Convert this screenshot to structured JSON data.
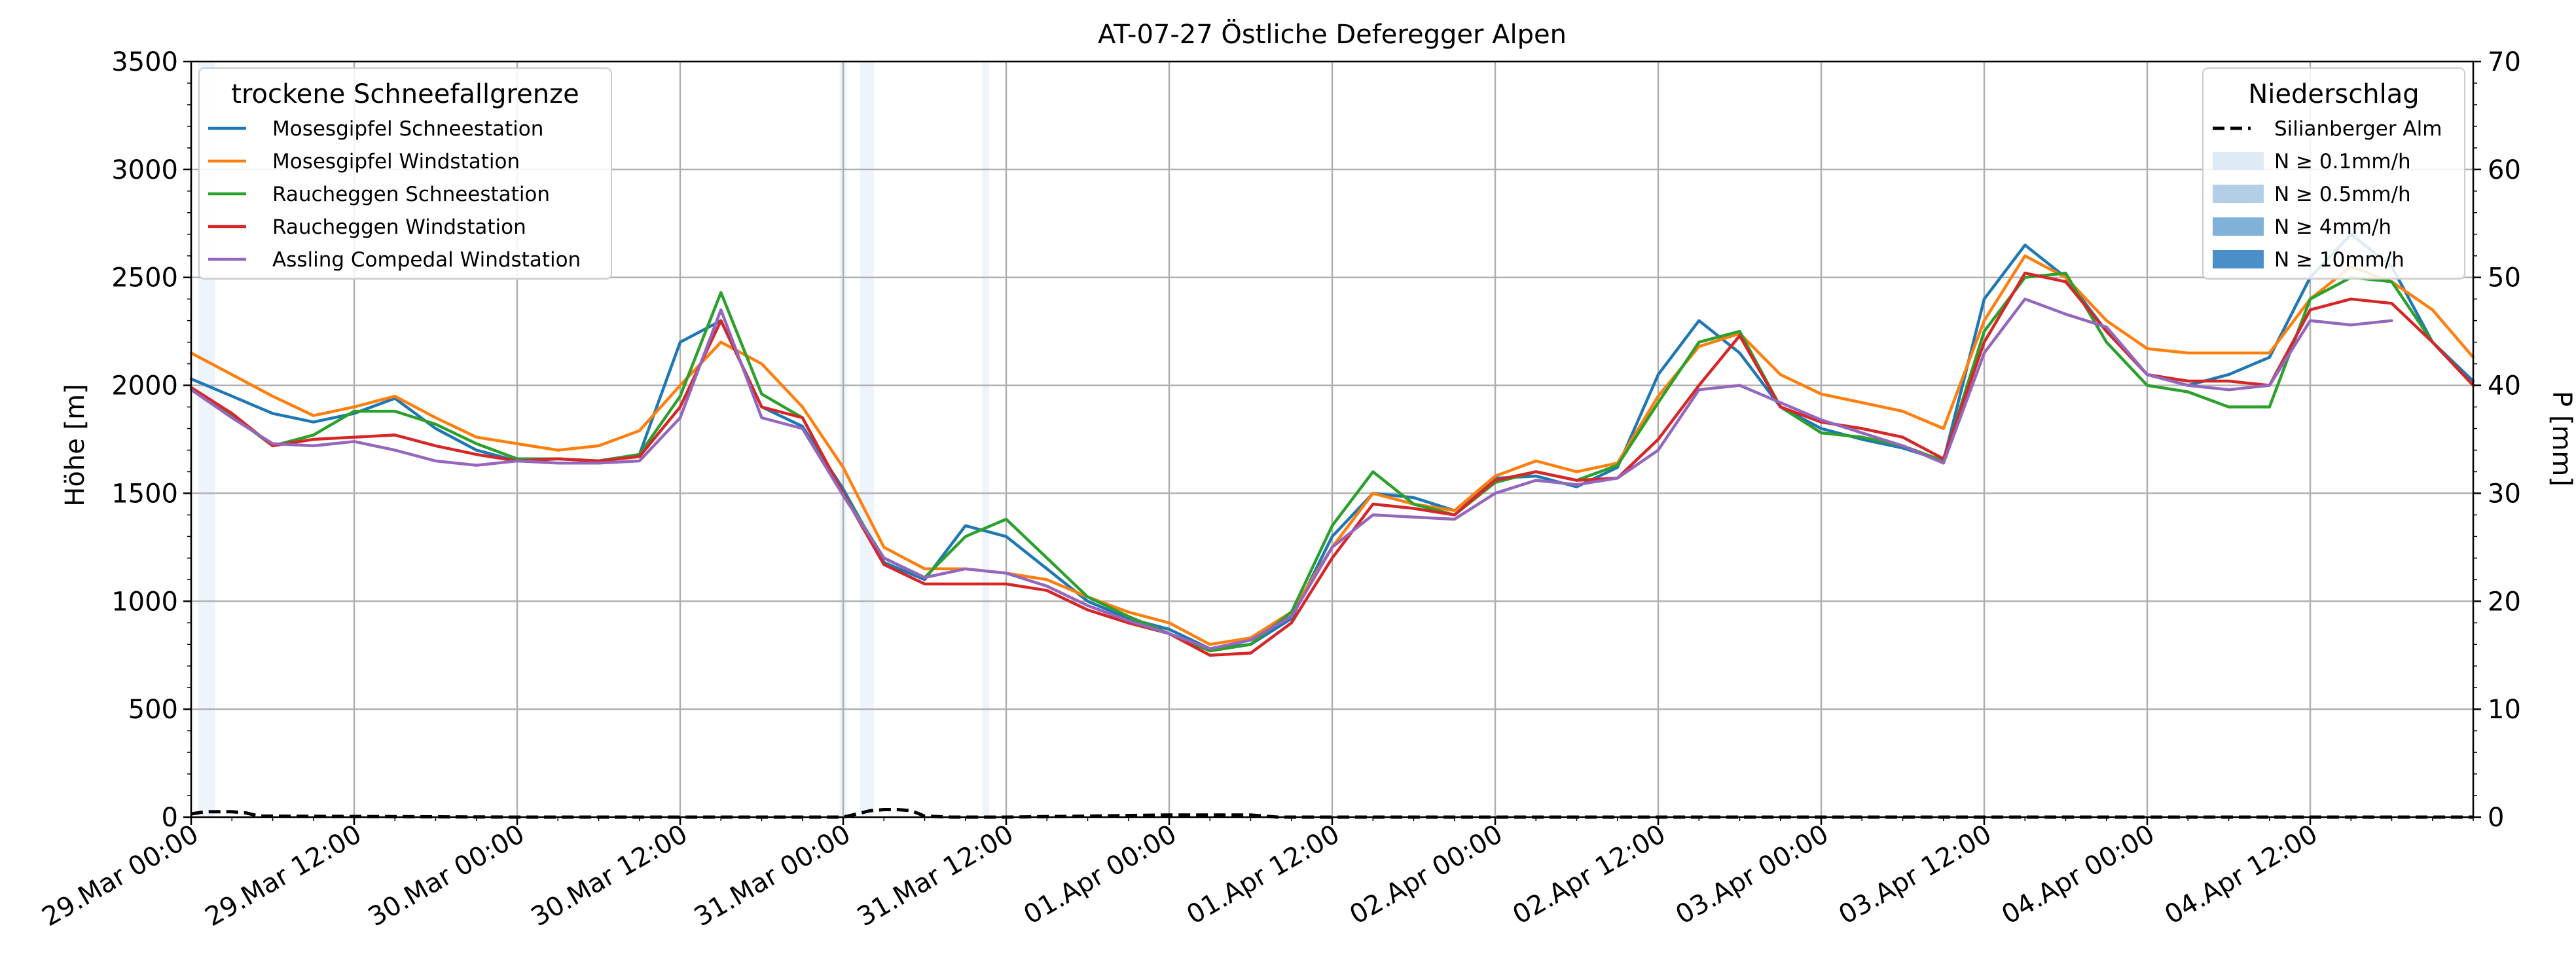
{
  "chart_data": {
    "type": "line",
    "title": "AT-07-27 Östliche Deferegger Alpen",
    "xlabel": "",
    "ylabel": "Höhe [m]",
    "y2label": "P [mm]",
    "xlim": [
      "2025-03-29T00:00",
      "2025-04-05T00:00"
    ],
    "ylim": [
      0,
      3500
    ],
    "y2lim": [
      0,
      70
    ],
    "grid": true,
    "y_ticks": [
      0,
      500,
      1000,
      1500,
      2000,
      2500,
      3000,
      3500
    ],
    "y2_ticks": [
      0,
      10,
      20,
      30,
      40,
      50,
      60,
      70
    ],
    "x_ticks": [
      {
        "t": "2025-03-29T00:00",
        "label": "29.Mar 00:00"
      },
      {
        "t": "2025-03-29T12:00",
        "label": "29.Mar 12:00"
      },
      {
        "t": "2025-03-30T00:00",
        "label": "30.Mar 00:00"
      },
      {
        "t": "2025-03-30T12:00",
        "label": "30.Mar 12:00"
      },
      {
        "t": "2025-03-31T00:00",
        "label": "31.Mar 00:00"
      },
      {
        "t": "2025-03-31T12:00",
        "label": "31.Mar 12:00"
      },
      {
        "t": "2025-04-01T00:00",
        "label": "01.Apr 00:00"
      },
      {
        "t": "2025-04-01T12:00",
        "label": "01.Apr 12:00"
      },
      {
        "t": "2025-04-02T00:00",
        "label": "02.Apr 00:00"
      },
      {
        "t": "2025-04-02T12:00",
        "label": "02.Apr 12:00"
      },
      {
        "t": "2025-04-03T00:00",
        "label": "03.Apr 00:00"
      },
      {
        "t": "2025-04-03T12:00",
        "label": "03.Apr 12:00"
      },
      {
        "t": "2025-04-04T00:00",
        "label": "04.Apr 00:00"
      },
      {
        "t": "2025-04-04T12:00",
        "label": "04.Apr 12:00"
      }
    ],
    "legend_left": {
      "title": "trockene Schneefallgrenze",
      "placement": "top-left"
    },
    "legend_right": {
      "title": "Niederschlag",
      "placement": "top-right",
      "entries": [
        {
          "label": "Silianberger Alm",
          "kind": "dashed-line",
          "color": "#000000"
        },
        {
          "label": "N ≥ 0.1mm/h",
          "kind": "patch",
          "color": "#deebf7"
        },
        {
          "label": "N ≥ 0.5mm/h",
          "kind": "patch",
          "color": "#b3cfe8"
        },
        {
          "label": "N ≥ 4mm/h",
          "kind": "patch",
          "color": "#7fb1d9"
        },
        {
          "label": "N ≥ 10mm/h",
          "kind": "patch",
          "color": "#4a8fc7"
        }
      ]
    },
    "precip_shading": [
      {
        "start": "2025-03-29T00:30",
        "end": "2025-03-29T01:45",
        "level": "N ≥ 0.1mm/h"
      },
      {
        "start": "2025-03-30T23:45",
        "end": "2025-03-31T00:15",
        "level": "N ≥ 0.1mm/h"
      },
      {
        "start": "2025-03-31T01:15",
        "end": "2025-03-31T02:15",
        "level": "N ≥ 0.1mm/h"
      },
      {
        "start": "2025-03-31T10:15",
        "end": "2025-03-31T10:45",
        "level": "N ≥ 0.1mm/h"
      }
    ],
    "precip_series": {
      "name": "Silianberger Alm",
      "axis": "right",
      "color": "#000000",
      "x": [
        "2025-03-29T00:00",
        "2025-03-29T01:00",
        "2025-03-29T02:00",
        "2025-03-29T03:00",
        "2025-03-29T04:00",
        "2025-03-29T05:00",
        "2025-03-30T00:00",
        "2025-03-31T00:00",
        "2025-03-31T01:00",
        "2025-03-31T02:00",
        "2025-03-31T03:00",
        "2025-03-31T04:00",
        "2025-03-31T05:00",
        "2025-03-31T06:00",
        "2025-03-31T08:00",
        "2025-03-31T12:00",
        "2025-03-31T18:00",
        "2025-04-01T00:00",
        "2025-04-01T03:00",
        "2025-04-01T06:00",
        "2025-04-01T07:00",
        "2025-04-01T08:00",
        "2025-04-02T00:00",
        "2025-04-05T00:00"
      ],
      "values": [
        0.3,
        0.5,
        0.5,
        0.5,
        0.4,
        0.1,
        0,
        0,
        0.3,
        0.6,
        0.7,
        0.7,
        0.6,
        0.1,
        0,
        0,
        0.1,
        0.2,
        0.2,
        0.2,
        0.1,
        0,
        0,
        0
      ]
    },
    "x": [
      "2025-03-29T00:00",
      "2025-03-29T03:00",
      "2025-03-29T06:00",
      "2025-03-29T09:00",
      "2025-03-29T12:00",
      "2025-03-29T15:00",
      "2025-03-29T18:00",
      "2025-03-29T21:00",
      "2025-03-30T00:00",
      "2025-03-30T03:00",
      "2025-03-30T06:00",
      "2025-03-30T09:00",
      "2025-03-30T12:00",
      "2025-03-30T15:00",
      "2025-03-30T18:00",
      "2025-03-30T21:00",
      "2025-03-31T00:00",
      "2025-03-31T03:00",
      "2025-03-31T06:00",
      "2025-03-31T09:00",
      "2025-03-31T12:00",
      "2025-03-31T15:00",
      "2025-03-31T18:00",
      "2025-03-31T21:00",
      "2025-04-01T00:00",
      "2025-04-01T03:00",
      "2025-04-01T06:00",
      "2025-04-01T09:00",
      "2025-04-01T12:00",
      "2025-04-01T15:00",
      "2025-04-01T18:00",
      "2025-04-01T21:00",
      "2025-04-02T00:00",
      "2025-04-02T03:00",
      "2025-04-02T06:00",
      "2025-04-02T09:00",
      "2025-04-02T12:00",
      "2025-04-02T15:00",
      "2025-04-02T18:00",
      "2025-04-02T21:00",
      "2025-04-03T00:00",
      "2025-04-03T03:00",
      "2025-04-03T06:00",
      "2025-04-03T09:00",
      "2025-04-03T12:00",
      "2025-04-03T15:00",
      "2025-04-03T18:00",
      "2025-04-03T21:00",
      "2025-04-04T00:00",
      "2025-04-04T03:00",
      "2025-04-04T06:00",
      "2025-04-04T09:00",
      "2025-04-04T12:00",
      "2025-04-04T15:00",
      "2025-04-04T18:00",
      "2025-04-04T21:00",
      "2025-04-05T00:00"
    ],
    "series": [
      {
        "name": "Mosesgipfel Schneestation",
        "color": "#1f77b4",
        "values": [
          2030,
          1950,
          1870,
          1830,
          1870,
          1940,
          1800,
          1700,
          1650,
          1660,
          1650,
          1680,
          2200,
          2300,
          1900,
          1810,
          1520,
          1180,
          1100,
          1350,
          1300,
          1150,
          1000,
          920,
          870,
          780,
          800,
          920,
          1300,
          1500,
          1480,
          1420,
          1570,
          1580,
          1530,
          1620,
          2050,
          2300,
          2150,
          1900,
          1800,
          1750,
          1710,
          1650,
          2400,
          2650,
          2500,
          2250,
          2050,
          2000,
          2050,
          2130,
          2500,
          2700,
          2550,
          2200,
          2020
        ]
      },
      {
        "name": "Mosesgipfel Windstation",
        "color": "#ff7f0e",
        "values": [
          2150,
          2050,
          1950,
          1860,
          1900,
          1950,
          1850,
          1760,
          1730,
          1700,
          1720,
          1790,
          2000,
          2200,
          2100,
          1900,
          1620,
          1250,
          1150,
          1150,
          1130,
          1100,
          1020,
          950,
          900,
          800,
          830,
          950,
          1250,
          1500,
          1450,
          1420,
          1580,
          1650,
          1600,
          1640,
          1950,
          2180,
          2240,
          2050,
          1960,
          1920,
          1880,
          1800,
          2300,
          2600,
          2500,
          2300,
          2170,
          2150,
          2150,
          2150,
          2400,
          2550,
          2480,
          2350,
          2130
        ]
      },
      {
        "name": "Raucheggen Schneestation",
        "color": "#2ca02c",
        "values": [
          1980,
          1860,
          1720,
          1770,
          1880,
          1880,
          1820,
          1730,
          1660,
          1660,
          1650,
          1680,
          1950,
          2430,
          1960,
          1850,
          1500,
          1200,
          1110,
          1300,
          1380,
          1200,
          1020,
          930,
          850,
          770,
          800,
          950,
          1350,
          1600,
          1450,
          1400,
          1550,
          1600,
          1560,
          1630,
          1920,
          2200,
          2250,
          1900,
          1780,
          1760,
          1720,
          1650,
          2250,
          2500,
          2520,
          2200,
          2000,
          1970,
          1900,
          1900,
          2400,
          2500,
          2480,
          2200,
          2000
        ]
      },
      {
        "name": "Raucheggen Windstation",
        "color": "#d62728",
        "values": [
          1990,
          1870,
          1720,
          1750,
          1760,
          1770,
          1720,
          1680,
          1650,
          1660,
          1650,
          1670,
          1900,
          2300,
          1900,
          1850,
          1500,
          1170,
          1080,
          1080,
          1080,
          1050,
          960,
          900,
          850,
          750,
          760,
          900,
          1200,
          1450,
          1430,
          1400,
          1560,
          1600,
          1560,
          1570,
          1750,
          2000,
          2230,
          1900,
          1830,
          1800,
          1760,
          1660,
          2200,
          2520,
          2480,
          2250,
          2050,
          2020,
          2020,
          2000,
          2350,
          2400,
          2380,
          2200,
          2000
        ]
      },
      {
        "name": "Assling Compedal Windstation",
        "color": "#9467bd",
        "values": [
          1980,
          1850,
          1730,
          1720,
          1740,
          1700,
          1650,
          1630,
          1650,
          1640,
          1640,
          1650,
          1850,
          2350,
          1850,
          1800,
          1490,
          1200,
          1110,
          1150,
          1130,
          1070,
          980,
          910,
          850,
          780,
          820,
          930,
          1250,
          1400,
          1390,
          1380,
          1500,
          1560,
          1540,
          1570,
          1700,
          1980,
          2000,
          1920,
          1840,
          1780,
          1720,
          1640,
          2150,
          2400,
          2330,
          2270,
          2050,
          2000,
          1980,
          2000,
          2300,
          2280,
          2300,
          null,
          null
        ]
      }
    ]
  }
}
